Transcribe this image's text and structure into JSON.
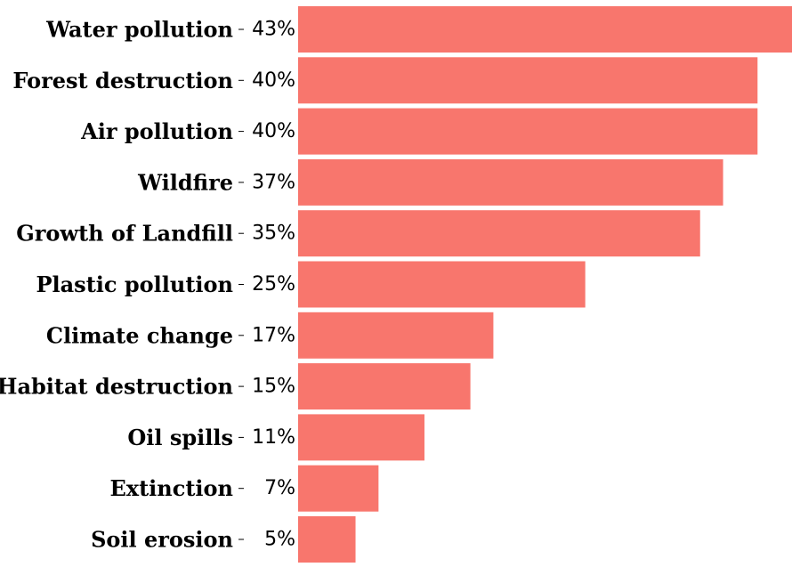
{
  "chart_data": {
    "type": "bar",
    "orientation": "horizontal",
    "categories": [
      "Water pollution",
      "Forest destruction",
      "Air pollution",
      "Wildfire",
      "Growth of Landfill",
      "Plastic pollution",
      "Climate change",
      "Habitat destruction",
      "Oil spills",
      "Extinction",
      "Soil erosion"
    ],
    "values": [
      43,
      40,
      40,
      37,
      35,
      25,
      17,
      15,
      11,
      7,
      5
    ],
    "value_labels": [
      "43%",
      "40%",
      "40%",
      "37%",
      "35%",
      "25%",
      "17%",
      "15%",
      "11%",
      "7%",
      "5%"
    ],
    "bar_color": "#f8766d",
    "grid": false,
    "legend": "none"
  }
}
